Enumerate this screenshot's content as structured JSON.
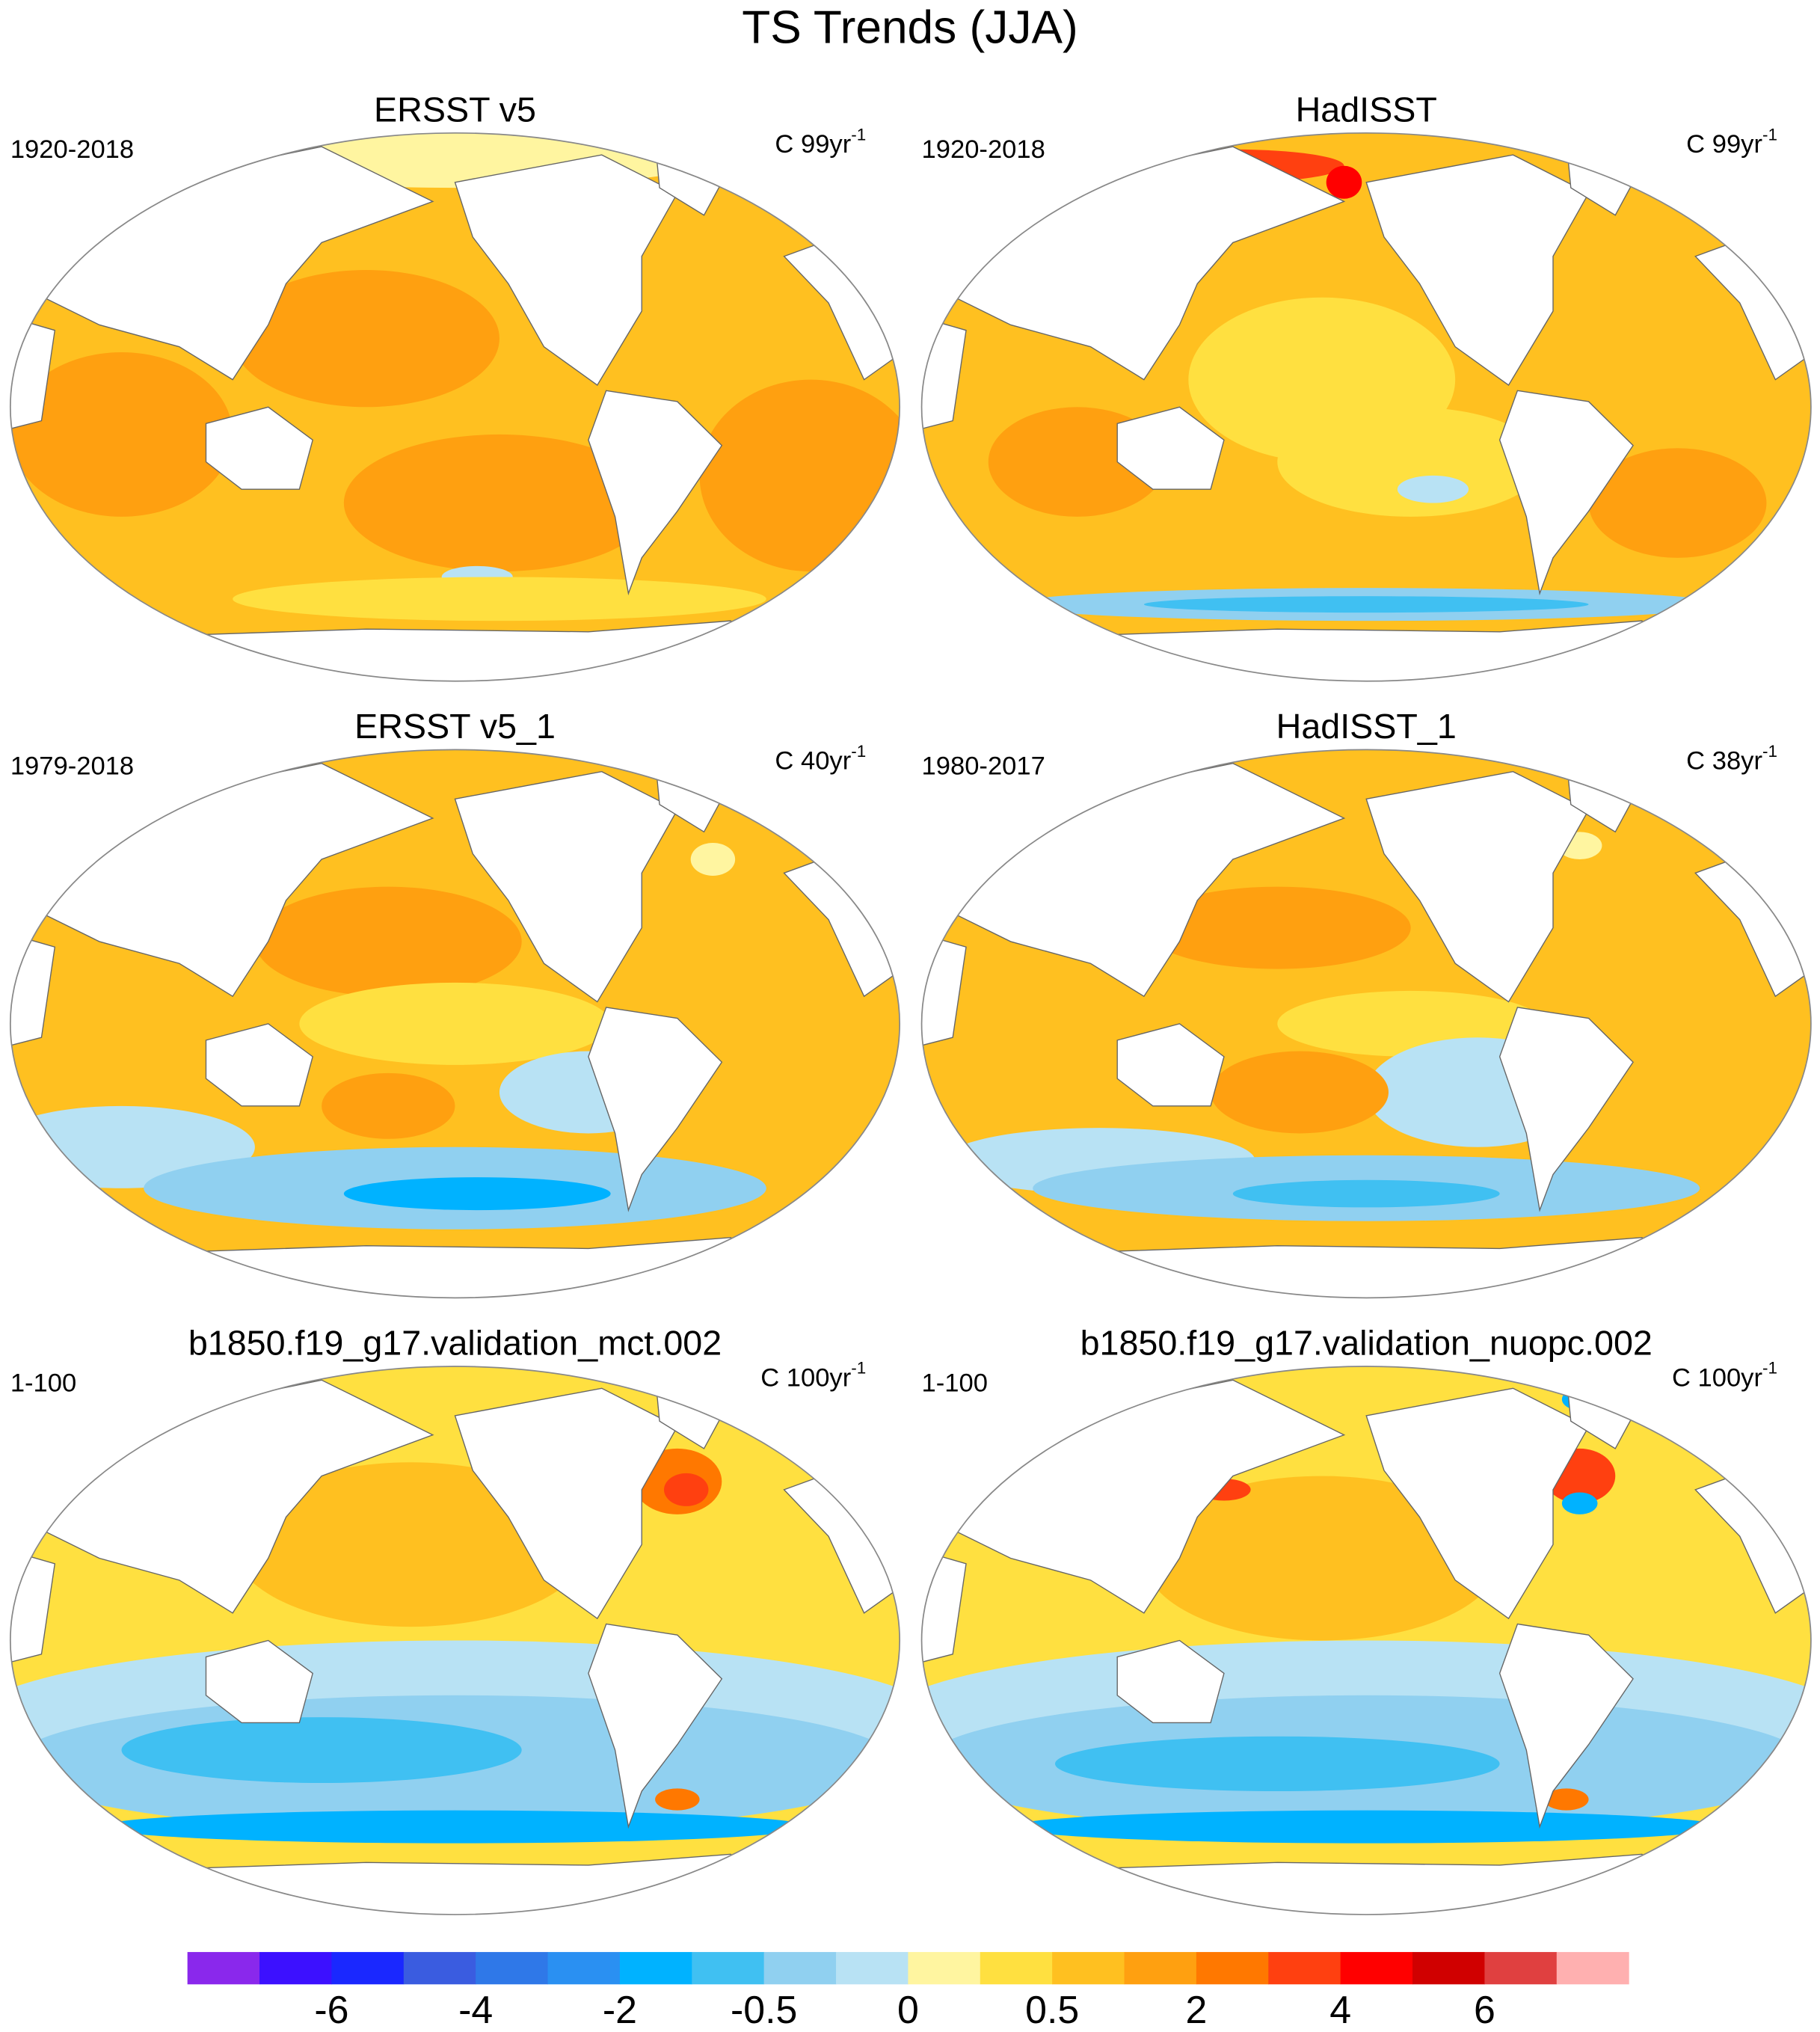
{
  "title": "TS Trends (JJA)",
  "panels": [
    {
      "title": "ERSST v5",
      "period": "1920-2018",
      "units": "C 99yr",
      "units_exponent": "-1"
    },
    {
      "title": "HadISST",
      "period": "1920-2018",
      "units": "C 99yr",
      "units_exponent": "-1"
    },
    {
      "title": "ERSST v5_1",
      "period": "1979-2018",
      "units": "C 40yr",
      "units_exponent": "-1"
    },
    {
      "title": "HadISST_1",
      "period": "1980-2017",
      "units": "C 38yr",
      "units_exponent": "-1"
    },
    {
      "title": "b1850.f19_g17.validation_mct.002",
      "period": "1-100",
      "units": "C 100yr",
      "units_exponent": "-1"
    },
    {
      "title": "b1850.f19_g17.validation_nuopc.002",
      "period": "1-100",
      "units": "C 100yr",
      "units_exponent": "-1"
    }
  ],
  "colorbar": {
    "colors": [
      "#8a28ec",
      "#3c10ff",
      "#1a28ff",
      "#3a5ce0",
      "#2f78e8",
      "#2a90f2",
      "#00b2ff",
      "#40c0f2",
      "#90d0f0",
      "#b8e2f4",
      "#fff5a0",
      "#ffe040",
      "#ffc020",
      "#ffa010",
      "#ff7800",
      "#ff4010",
      "#ff0000",
      "#d00000",
      "#e04040",
      "#ffb0b0"
    ],
    "ticks": [
      -6,
      -4,
      -2,
      -0.5,
      0,
      0.5,
      2,
      4,
      6
    ]
  }
}
